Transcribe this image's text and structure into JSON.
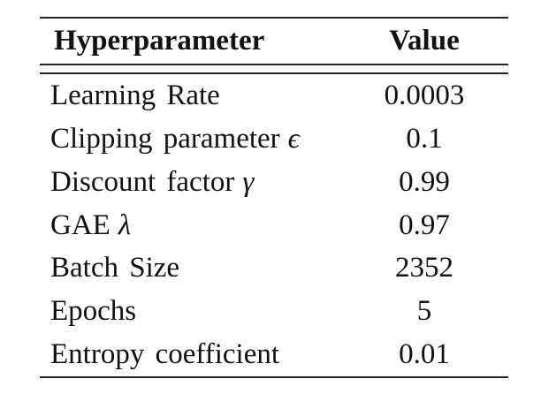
{
  "table": {
    "background": "#ffffff",
    "text_color": "#111111",
    "rule_color": "#262626",
    "columns": {
      "param_header": "Hyperparameter",
      "value_header": "Value"
    },
    "rows": [
      {
        "label": "Learning Rate",
        "symbol": "",
        "value": "0.0003"
      },
      {
        "label": "Clipping parameter",
        "symbol": "ϵ",
        "value": "0.1"
      },
      {
        "label": "Discount factor",
        "symbol": "γ",
        "value": "0.99"
      },
      {
        "label": "GAE",
        "symbol": "λ",
        "value": "0.97"
      },
      {
        "label": "Batch Size",
        "symbol": "",
        "value": "2352"
      },
      {
        "label": "Epochs",
        "symbol": "",
        "value": "5"
      },
      {
        "label": "Entropy coefficient",
        "symbol": "",
        "value": "0.01"
      }
    ]
  }
}
